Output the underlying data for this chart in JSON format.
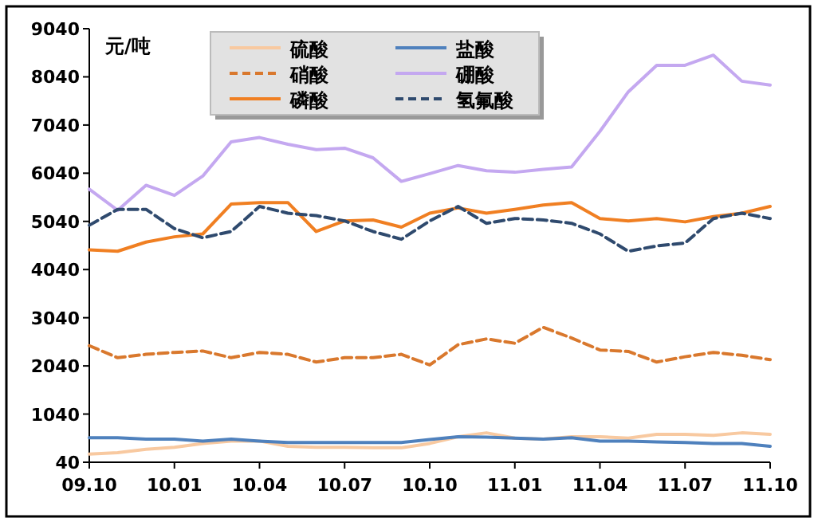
{
  "chart_data": {
    "type": "line",
    "ylabel": "元/吨",
    "x": [
      "2009-10",
      "2009-11",
      "2009-12",
      "2010-01",
      "2010-02",
      "2010-03",
      "2010-04",
      "2010-05",
      "2010-06",
      "2010-07",
      "2010-08",
      "2010-09",
      "2010-10",
      "2010-11",
      "2010-12",
      "2011-01",
      "2011-02",
      "2011-03",
      "2011-04",
      "2011-05",
      "2011-06",
      "2011-07",
      "2011-08",
      "2011-09",
      "2011-10"
    ],
    "xlim": [
      "2009-10",
      "2011-10"
    ],
    "xticks": [
      {
        "value": "2009-10",
        "label": "09.10"
      },
      {
        "value": "2010-01",
        "label": "10.01"
      },
      {
        "value": "2010-04",
        "label": "10.04"
      },
      {
        "value": "2010-07",
        "label": "10.07"
      },
      {
        "value": "2010-10",
        "label": "10.10"
      },
      {
        "value": "2011-01",
        "label": "11.01"
      },
      {
        "value": "2011-04",
        "label": "11.04"
      },
      {
        "value": "2011-07",
        "label": "11.07"
      },
      {
        "value": "2011-10",
        "label": "11.10"
      }
    ],
    "ylim": [
      40,
      9040
    ],
    "yticks": [
      40,
      1040,
      2040,
      3040,
      4040,
      5040,
      6040,
      7040,
      8040,
      9040
    ],
    "grid": false,
    "legend": "top",
    "marker": "none",
    "series": [
      {
        "name": "硫酸",
        "color": "#f8c9a0",
        "line_style": "solid",
        "values": [
          210,
          240,
          310,
          350,
          430,
          480,
          480,
          370,
          350,
          350,
          340,
          340,
          430,
          570,
          650,
          540,
          520,
          570,
          570,
          540,
          620,
          620,
          600,
          650,
          620
        ]
      },
      {
        "name": "盐酸",
        "color": "#4f81bd",
        "line_style": "solid",
        "values": [
          550,
          550,
          520,
          520,
          480,
          520,
          480,
          450,
          450,
          450,
          450,
          450,
          510,
          570,
          560,
          540,
          520,
          550,
          480,
          480,
          460,
          450,
          430,
          430,
          370
        ]
      },
      {
        "name": "硝酸",
        "color": "#d9782d",
        "line_style": "dashed",
        "values": [
          2460,
          2210,
          2280,
          2320,
          2350,
          2210,
          2320,
          2280,
          2120,
          2210,
          2210,
          2280,
          2060,
          2480,
          2600,
          2510,
          2840,
          2620,
          2370,
          2340,
          2120,
          2230,
          2320,
          2260,
          2170
        ]
      },
      {
        "name": "硼酸",
        "color": "#c4a8f0",
        "line_style": "solid",
        "values": [
          5710,
          5270,
          5790,
          5580,
          5980,
          6690,
          6780,
          6640,
          6530,
          6560,
          6360,
          5870,
          6030,
          6200,
          6090,
          6060,
          6120,
          6170,
          6910,
          7730,
          8280,
          8280,
          8490,
          7950,
          7870
        ]
      },
      {
        "name": "磷酸",
        "color": "#f07f22",
        "line_style": "solid",
        "values": [
          4450,
          4420,
          4610,
          4720,
          4780,
          5400,
          5430,
          5430,
          4830,
          5050,
          5070,
          4920,
          5210,
          5320,
          5210,
          5290,
          5380,
          5430,
          5100,
          5050,
          5100,
          5030,
          5140,
          5210,
          5350
        ]
      },
      {
        "name": "氢氟酸",
        "color": "#2f4a6e",
        "line_style": "dashed",
        "values": [
          4960,
          5290,
          5290,
          4890,
          4700,
          4830,
          5350,
          5210,
          5160,
          5050,
          4830,
          4670,
          5050,
          5350,
          5000,
          5100,
          5070,
          5000,
          4780,
          4420,
          4530,
          4590,
          5100,
          5210,
          5100
        ]
      }
    ]
  }
}
